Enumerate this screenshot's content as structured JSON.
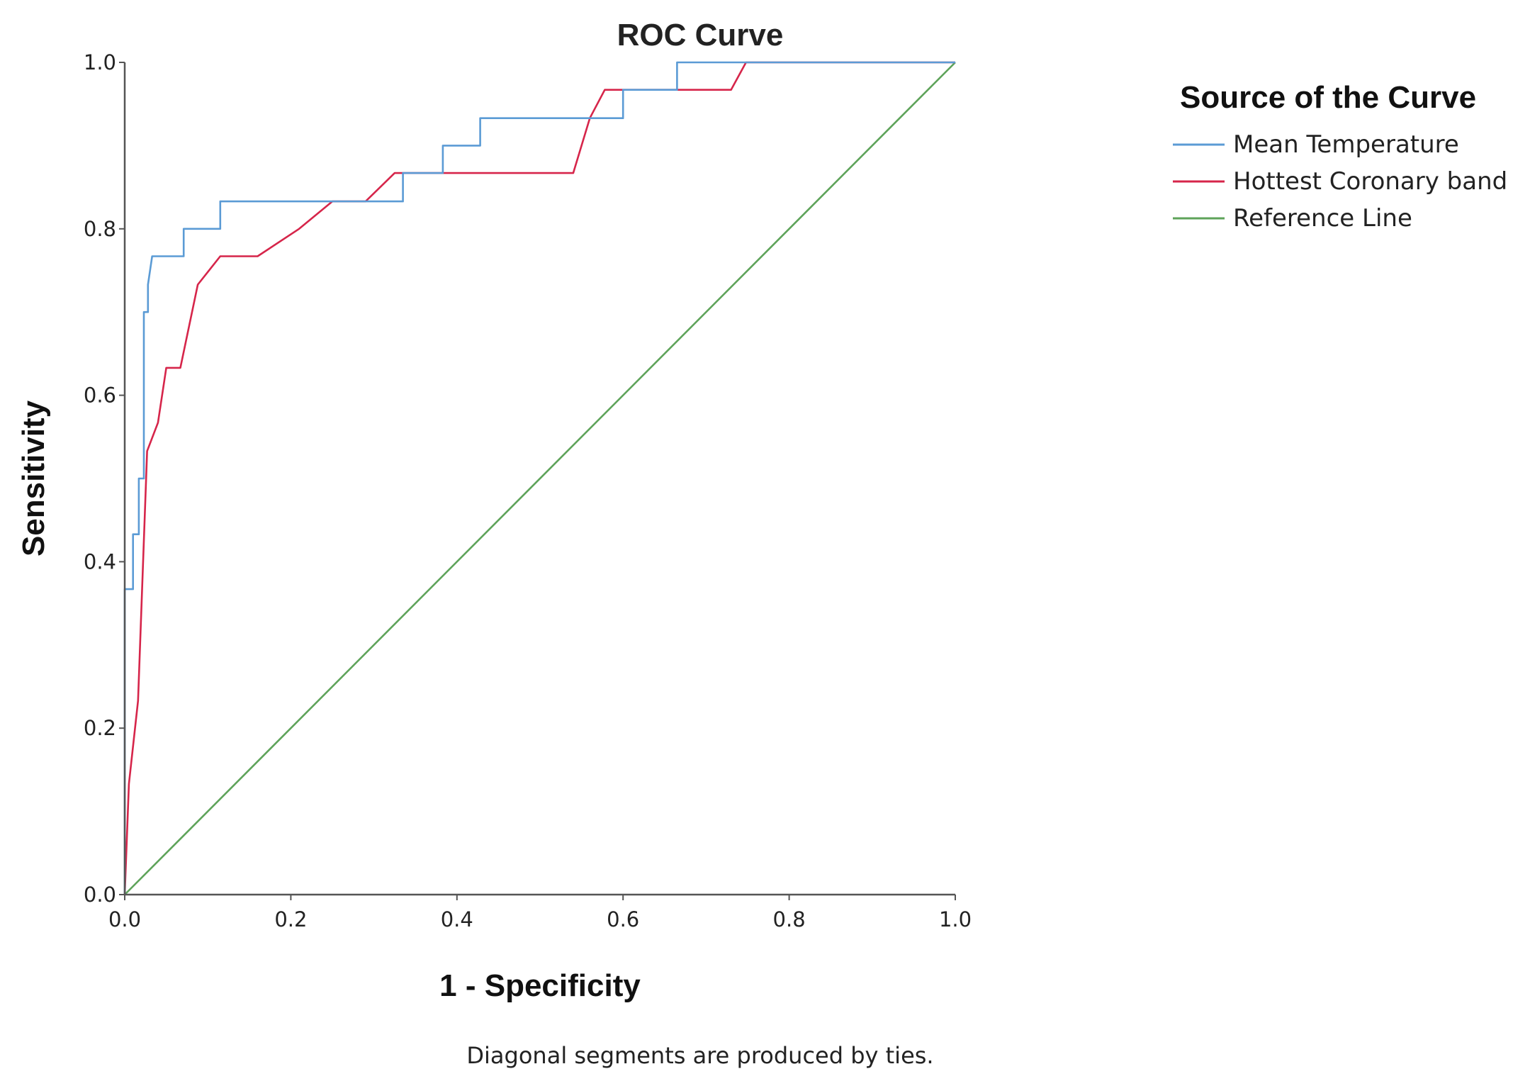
{
  "chart_data": {
    "type": "line",
    "title": "ROC Curve",
    "xlabel": "1 - Specificity",
    "ylabel": "Sensitivity",
    "xlim": [
      0,
      1
    ],
    "ylim": [
      0,
      1
    ],
    "x_ticks": [
      "0.0",
      "0.2",
      "0.4",
      "0.6",
      "0.8",
      "1.0"
    ],
    "y_ticks": [
      "0.0",
      "0.2",
      "0.4",
      "0.6",
      "0.8",
      "1.0"
    ],
    "grid": false,
    "legend_title": "Source of the Curve",
    "legend_position": "top-right",
    "footnote": "Diagonal segments are produced by ties.",
    "series": [
      {
        "name": "Mean Temperature",
        "color": "#5b9bd5",
        "points": [
          [
            0,
            0
          ],
          [
            0,
            0.367
          ],
          [
            0.01,
            0.367
          ],
          [
            0.01,
            0.433
          ],
          [
            0.017,
            0.433
          ],
          [
            0.017,
            0.5
          ],
          [
            0.023,
            0.5
          ],
          [
            0.023,
            0.7
          ],
          [
            0.028,
            0.7
          ],
          [
            0.028,
            0.733
          ],
          [
            0.033,
            0.767
          ],
          [
            0.071,
            0.767
          ],
          [
            0.071,
            0.8
          ],
          [
            0.115,
            0.8
          ],
          [
            0.115,
            0.833
          ],
          [
            0.335,
            0.833
          ],
          [
            0.335,
            0.867
          ],
          [
            0.383,
            0.867
          ],
          [
            0.383,
            0.9
          ],
          [
            0.428,
            0.9
          ],
          [
            0.428,
            0.933
          ],
          [
            0.6,
            0.933
          ],
          [
            0.6,
            0.967
          ],
          [
            0.665,
            0.967
          ],
          [
            0.665,
            1.0
          ],
          [
            1.0,
            1.0
          ]
        ]
      },
      {
        "name": "Hottest Coronary band",
        "color": "#d6254a",
        "points": [
          [
            0,
            0
          ],
          [
            0.005,
            0.133
          ],
          [
            0.016,
            0.233
          ],
          [
            0.027,
            0.533
          ],
          [
            0.04,
            0.567
          ],
          [
            0.05,
            0.633
          ],
          [
            0.067,
            0.633
          ],
          [
            0.088,
            0.733
          ],
          [
            0.115,
            0.767
          ],
          [
            0.16,
            0.767
          ],
          [
            0.21,
            0.8
          ],
          [
            0.25,
            0.833
          ],
          [
            0.29,
            0.833
          ],
          [
            0.325,
            0.867
          ],
          [
            0.54,
            0.867
          ],
          [
            0.56,
            0.933
          ],
          [
            0.578,
            0.967
          ],
          [
            0.73,
            0.967
          ],
          [
            0.748,
            1.0
          ],
          [
            1.0,
            1.0
          ]
        ]
      },
      {
        "name": "Reference Line",
        "color": "#5ea35a",
        "points": [
          [
            0,
            0
          ],
          [
            1,
            1
          ]
        ]
      }
    ]
  }
}
